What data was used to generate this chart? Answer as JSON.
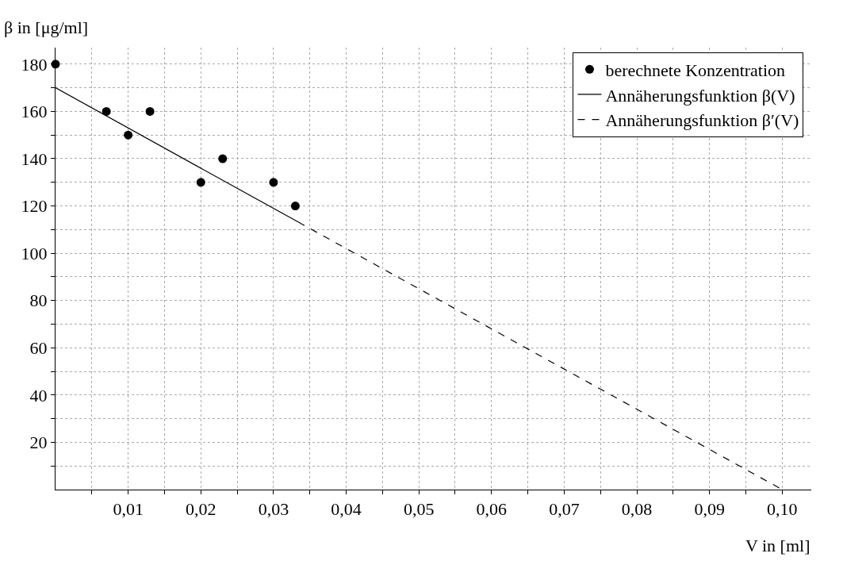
{
  "chart_data": {
    "type": "scatter",
    "xlabel": "V in [ml]",
    "ylabel": "β in [μg/ml]",
    "xlim": [
      0,
      0.104
    ],
    "ylim": [
      0,
      187
    ],
    "xticks": [
      {
        "value": 0.005,
        "label": null
      },
      {
        "value": 0.01,
        "label": "0,01"
      },
      {
        "value": 0.015,
        "label": null
      },
      {
        "value": 0.02,
        "label": "0,02"
      },
      {
        "value": 0.025,
        "label": null
      },
      {
        "value": 0.03,
        "label": "0,03"
      },
      {
        "value": 0.035,
        "label": null
      },
      {
        "value": 0.04,
        "label": "0,04"
      },
      {
        "value": 0.045,
        "label": null
      },
      {
        "value": 0.05,
        "label": "0,05"
      },
      {
        "value": 0.055,
        "label": null
      },
      {
        "value": 0.06,
        "label": "0,06"
      },
      {
        "value": 0.065,
        "label": null
      },
      {
        "value": 0.07,
        "label": "0,07"
      },
      {
        "value": 0.075,
        "label": null
      },
      {
        "value": 0.08,
        "label": "0,08"
      },
      {
        "value": 0.085,
        "label": null
      },
      {
        "value": 0.09,
        "label": "0,09"
      },
      {
        "value": 0.095,
        "label": null
      },
      {
        "value": 0.1,
        "label": "0,10"
      }
    ],
    "yticks": [
      {
        "value": 10,
        "label": null
      },
      20,
      {
        "value": 30,
        "label": null
      },
      40,
      {
        "value": 50,
        "label": null
      },
      60,
      {
        "value": 70,
        "label": null
      },
      80,
      {
        "value": 90,
        "label": null
      },
      100,
      {
        "value": 110,
        "label": null
      },
      120,
      {
        "value": 130,
        "label": null
      },
      140,
      {
        "value": 150,
        "label": null
      },
      160,
      {
        "value": 170,
        "label": null
      },
      180
    ],
    "grid": true,
    "legend": "top right",
    "series": [
      {
        "name": "berechnete Konzentration",
        "color": "#000000",
        "marker": "circle",
        "x": [
          0,
          0.007,
          0.01,
          0.013,
          0.02,
          0.023,
          0.03,
          0.033
        ],
        "values": [
          180,
          160,
          150,
          160,
          130,
          140,
          130,
          120
        ]
      },
      {
        "name": "Annäherungsfunktion β(V)",
        "type": "line",
        "color": "#000000",
        "line_style": "solid",
        "x": [
          0,
          0.0334
        ],
        "values": [
          170,
          113.2
        ]
      },
      {
        "name": "Annäherungsfunktion β′(V)",
        "type": "line",
        "color": "#000000",
        "line_style": "dashed",
        "x": [
          0.0334,
          0.1
        ],
        "values": [
          113.2,
          0
        ]
      }
    ]
  }
}
